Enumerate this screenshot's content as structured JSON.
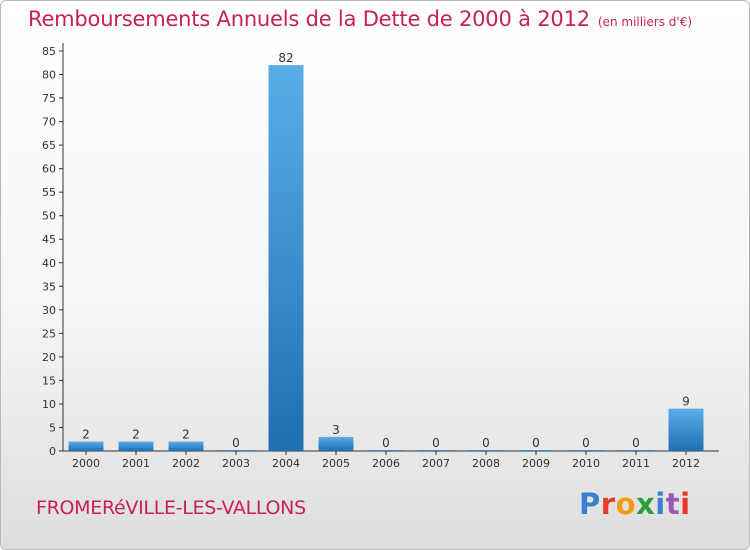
{
  "chart_data": {
    "type": "bar",
    "title": "Remboursements Annuels de la Dette de 2000 à 2012",
    "unit_label": "(en milliers d'€)",
    "categories": [
      "2000",
      "2001",
      "2002",
      "2003",
      "2004",
      "2005",
      "2006",
      "2007",
      "2008",
      "2009",
      "2010",
      "2011",
      "2012"
    ],
    "values": [
      2,
      2,
      2,
      0,
      82,
      3,
      0,
      0,
      0,
      0,
      0,
      0,
      9
    ],
    "data_labels": [
      "2",
      "2",
      "2",
      "0",
      "82",
      "3",
      "0",
      "0",
      "0",
      "0",
      "0",
      "0",
      "9"
    ],
    "yticks": [
      "0",
      "5",
      "10",
      "15",
      "20",
      "25",
      "30",
      "35",
      "40",
      "45",
      "50",
      "55",
      "60",
      "65",
      "70",
      "75",
      "80",
      "85"
    ],
    "ylim": [
      0,
      85
    ],
    "xlabel": "",
    "ylabel": "",
    "grid": false,
    "legend": "none",
    "bar_color": "#3a8fd0"
  },
  "footer": {
    "commune": "FROMERéVILLE-LES-VALLONS",
    "brand": "Proxiti",
    "brand_colors": [
      "#3a7fd0",
      "#e8392a",
      "#f39c12",
      "#2e9e3a",
      "#3a7fd0",
      "#9b59b6",
      "#e8392a"
    ]
  }
}
